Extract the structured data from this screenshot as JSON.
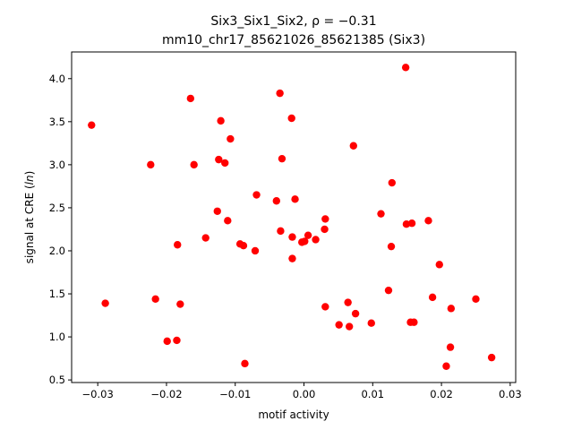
{
  "chart_data": {
    "type": "scatter",
    "title_line1": "Six3_Six1_Six2, ρ = −0.31",
    "title_line2": "mm10_chr17_85621026_85621385 (Six3)",
    "xlabel": "motif activity",
    "ylabel_prefix": "signal at CRE (",
    "ylabel_italic": "ln",
    "ylabel_suffix": ")",
    "xlim": [
      -0.0338,
      0.0308
    ],
    "ylim": [
      0.47,
      4.31
    ],
    "xticks": [
      -0.03,
      -0.02,
      -0.01,
      0.0,
      0.01,
      0.02,
      0.03
    ],
    "xtick_labels": [
      "−0.03",
      "−0.02",
      "−0.01",
      "0.00",
      "0.01",
      "0.02",
      "0.03"
    ],
    "yticks": [
      0.5,
      1.0,
      1.5,
      2.0,
      2.5,
      3.0,
      3.5,
      4.0
    ],
    "ytick_labels": [
      "0.5",
      "1.0",
      "1.5",
      "2.0",
      "2.5",
      "3.0",
      "3.5",
      "4.0"
    ],
    "grid": false,
    "marker_color": "#ff0000",
    "points": [
      {
        "x": -0.0309,
        "y": 3.46
      },
      {
        "x": -0.0289,
        "y": 1.39
      },
      {
        "x": -0.0223,
        "y": 3.0
      },
      {
        "x": -0.0216,
        "y": 1.44
      },
      {
        "x": -0.0199,
        "y": 0.95
      },
      {
        "x": -0.0185,
        "y": 0.96
      },
      {
        "x": -0.0184,
        "y": 2.07
      },
      {
        "x": -0.018,
        "y": 1.38
      },
      {
        "x": -0.0165,
        "y": 3.77
      },
      {
        "x": -0.016,
        "y": 3.0
      },
      {
        "x": -0.0143,
        "y": 2.15
      },
      {
        "x": -0.0126,
        "y": 2.46
      },
      {
        "x": -0.0124,
        "y": 3.06
      },
      {
        "x": -0.0121,
        "y": 3.51
      },
      {
        "x": -0.0115,
        "y": 3.02
      },
      {
        "x": -0.0111,
        "y": 2.35
      },
      {
        "x": -0.0107,
        "y": 3.3
      },
      {
        "x": -0.0093,
        "y": 2.08
      },
      {
        "x": -0.0088,
        "y": 2.06
      },
      {
        "x": -0.0086,
        "y": 0.69
      },
      {
        "x": -0.0071,
        "y": 2.0
      },
      {
        "x": -0.0069,
        "y": 2.65
      },
      {
        "x": -0.004,
        "y": 2.58
      },
      {
        "x": -0.0035,
        "y": 3.83
      },
      {
        "x": -0.0034,
        "y": 2.23
      },
      {
        "x": -0.0032,
        "y": 3.07
      },
      {
        "x": -0.0018,
        "y": 3.54
      },
      {
        "x": -0.0017,
        "y": 2.16
      },
      {
        "x": -0.0017,
        "y": 1.91
      },
      {
        "x": -0.0013,
        "y": 2.6
      },
      {
        "x": -0.0003,
        "y": 2.1
      },
      {
        "x": 0.0001,
        "y": 2.11
      },
      {
        "x": 0.0006,
        "y": 2.18
      },
      {
        "x": 0.0017,
        "y": 2.13
      },
      {
        "x": 0.003,
        "y": 2.25
      },
      {
        "x": 0.0031,
        "y": 2.37
      },
      {
        "x": 0.0031,
        "y": 1.35
      },
      {
        "x": 0.0051,
        "y": 1.14
      },
      {
        "x": 0.0064,
        "y": 1.4
      },
      {
        "x": 0.0066,
        "y": 1.12
      },
      {
        "x": 0.0072,
        "y": 3.22
      },
      {
        "x": 0.0075,
        "y": 1.27
      },
      {
        "x": 0.0098,
        "y": 1.16
      },
      {
        "x": 0.0112,
        "y": 2.43
      },
      {
        "x": 0.0123,
        "y": 1.54
      },
      {
        "x": 0.0127,
        "y": 2.05
      },
      {
        "x": 0.0128,
        "y": 2.79
      },
      {
        "x": 0.0148,
        "y": 4.13
      },
      {
        "x": 0.0149,
        "y": 2.31
      },
      {
        "x": 0.0155,
        "y": 1.17
      },
      {
        "x": 0.0157,
        "y": 2.32
      },
      {
        "x": 0.016,
        "y": 1.17
      },
      {
        "x": 0.0181,
        "y": 2.35
      },
      {
        "x": 0.0187,
        "y": 1.46
      },
      {
        "x": 0.0197,
        "y": 1.84
      },
      {
        "x": 0.0207,
        "y": 0.66
      },
      {
        "x": 0.0213,
        "y": 0.88
      },
      {
        "x": 0.0214,
        "y": 1.33
      },
      {
        "x": 0.025,
        "y": 1.44
      },
      {
        "x": 0.0273,
        "y": 0.76
      }
    ]
  }
}
